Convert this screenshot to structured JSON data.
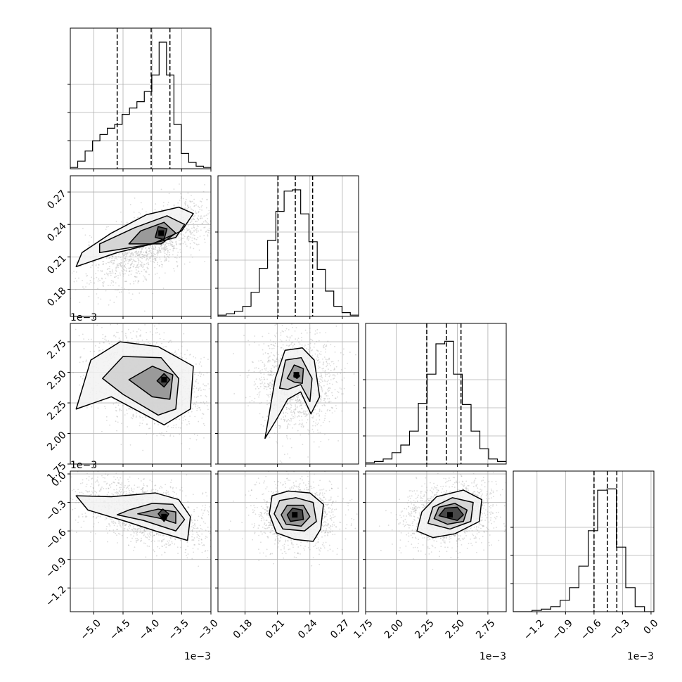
{
  "chart_data": {
    "type": "corner",
    "parameters": [
      {
        "range": [
          -5.4,
          -3.0
        ],
        "ticks": [
          -5.0,
          -4.5,
          -4.0,
          -3.5,
          -3.0
        ],
        "tick_labels": [
          "−5.0",
          "−4.5",
          "−4.0",
          "−3.5",
          "−3.0"
        ],
        "offset_label": "1e−3",
        "quantiles": [
          -4.6,
          -4.02,
          -3.7
        ]
      },
      {
        "range": [
          0.155,
          0.285
        ],
        "ticks": [
          0.18,
          0.21,
          0.24,
          0.27
        ],
        "tick_labels": [
          "0.18",
          "0.21",
          "0.24",
          "0.27"
        ],
        "offset_label": "",
        "quantiles": [
          0.2105,
          0.2265,
          0.2425
        ]
      },
      {
        "range": [
          1.75,
          2.9
        ],
        "ticks": [
          1.75,
          2.0,
          2.25,
          2.5,
          2.75
        ],
        "tick_labels": [
          "1.75",
          "2.00",
          "2.25",
          "2.50",
          "2.75"
        ],
        "offset_label": "1e−3",
        "quantiles": [
          2.25,
          2.41,
          2.53
        ]
      },
      {
        "range": [
          -1.45,
          0.03
        ],
        "ticks": [
          -1.2,
          -0.9,
          -0.6,
          -0.3,
          0.0
        ],
        "tick_labels": [
          "−1.2",
          "−0.9",
          "−0.6",
          "−0.3",
          "0.0"
        ],
        "offset_label": "1e−3",
        "quantiles": [
          -0.6,
          -0.46,
          -0.36
        ]
      }
    ],
    "histograms": [
      [
        0.01,
        0.06,
        0.14,
        0.22,
        0.27,
        0.32,
        0.35,
        0.43,
        0.48,
        0.53,
        0.61,
        0.74,
        1.0,
        0.74,
        0.35,
        0.12,
        0.05,
        0.02,
        0.01
      ],
      [
        0.01,
        0.02,
        0.04,
        0.08,
        0.19,
        0.38,
        0.6,
        0.83,
        0.99,
        1.0,
        0.81,
        0.59,
        0.37,
        0.2,
        0.08,
        0.03,
        0.01
      ],
      [
        0.01,
        0.02,
        0.04,
        0.09,
        0.15,
        0.26,
        0.48,
        0.71,
        0.95,
        0.97,
        0.71,
        0.47,
        0.26,
        0.12,
        0.04,
        0.02
      ],
      [
        0.0,
        0.0,
        0.01,
        0.02,
        0.04,
        0.09,
        0.19,
        0.36,
        0.64,
        0.96,
        0.97,
        0.51,
        0.19,
        0.04,
        0.0
      ]
    ],
    "histogram_y_ticks": [
      0.0,
      0.3,
      0.6,
      0.9
    ],
    "pairs": [
      {
        "x": 0,
        "y": 1,
        "mean": [
          -4.0,
          0.223
        ],
        "sigma": [
          0.5,
          0.018
        ],
        "corr": 0.7,
        "peak": [
          -3.85,
          0.232
        ],
        "contours": [
          [
            [
              -5.3,
              0.201
            ],
            [
              -4.6,
              0.214
            ],
            [
              -4.0,
              0.222
            ],
            [
              -3.5,
              0.234
            ],
            [
              -3.3,
              0.25
            ],
            [
              -3.55,
              0.256
            ],
            [
              -4.1,
              0.249
            ],
            [
              -4.7,
              0.232
            ],
            [
              -5.2,
              0.214
            ]
          ],
          [
            [
              -4.9,
              0.214
            ],
            [
              -4.1,
              0.221
            ],
            [
              -3.6,
              0.228
            ],
            [
              -3.45,
              0.24
            ],
            [
              -3.75,
              0.248
            ],
            [
              -4.3,
              0.237
            ],
            [
              -4.9,
              0.222
            ]
          ],
          [
            [
              -4.4,
              0.222
            ],
            [
              -3.85,
              0.222
            ],
            [
              -3.6,
              0.232
            ],
            [
              -3.8,
              0.242
            ],
            [
              -4.2,
              0.234
            ]
          ],
          [
            [
              -3.95,
              0.228
            ],
            [
              -3.8,
              0.226
            ],
            [
              -3.75,
              0.236
            ],
            [
              -3.9,
              0.238
            ]
          ]
        ]
      },
      {
        "x": 0,
        "y": 2,
        "mean": [
          -4.1,
          2.42
        ],
        "sigma": [
          0.45,
          0.17
        ],
        "corr": -0.3,
        "peak": [
          -3.8,
          2.44
        ],
        "contours": [
          [
            [
              -5.3,
              2.2
            ],
            [
              -5.05,
              2.6
            ],
            [
              -4.55,
              2.75
            ],
            [
              -3.9,
              2.71
            ],
            [
              -3.3,
              2.55
            ],
            [
              -3.35,
              2.2
            ],
            [
              -3.8,
              2.07
            ],
            [
              -4.7,
              2.3
            ]
          ],
          [
            [
              -4.85,
              2.45
            ],
            [
              -4.5,
              2.63
            ],
            [
              -3.85,
              2.62
            ],
            [
              -3.55,
              2.45
            ],
            [
              -3.6,
              2.2
            ],
            [
              -3.9,
              2.15
            ],
            [
              -4.5,
              2.32
            ]
          ],
          [
            [
              -4.4,
              2.44
            ],
            [
              -4.0,
              2.55
            ],
            [
              -3.65,
              2.48
            ],
            [
              -3.7,
              2.28
            ],
            [
              -4.0,
              2.3
            ]
          ],
          [
            [
              -3.92,
              2.43
            ],
            [
              -3.8,
              2.49
            ],
            [
              -3.7,
              2.44
            ],
            [
              -3.8,
              2.38
            ]
          ]
        ]
      },
      {
        "x": 1,
        "y": 2,
        "mean": [
          0.228,
          2.42
        ],
        "sigma": [
          0.016,
          0.17
        ],
        "corr": 0.0,
        "peak": [
          0.2275,
          2.48
        ],
        "contours": [
          [
            [
              0.1985,
              1.96
            ],
            [
              0.208,
              2.45
            ],
            [
              0.217,
              2.68
            ],
            [
              0.233,
              2.7
            ],
            [
              0.244,
              2.6
            ],
            [
              0.249,
              2.3
            ],
            [
              0.241,
              2.16
            ],
            [
              0.2315,
              2.34
            ],
            [
              0.2195,
              2.28
            ],
            [
              0.2095,
              2.12
            ]
          ],
          [
            [
              0.212,
              2.37
            ],
            [
              0.2175,
              2.6
            ],
            [
              0.232,
              2.62
            ],
            [
              0.242,
              2.45
            ],
            [
              0.24,
              2.26
            ],
            [
              0.2315,
              2.4
            ],
            [
              0.2195,
              2.36
            ]
          ],
          [
            [
              0.219,
              2.45
            ],
            [
              0.2255,
              2.56
            ],
            [
              0.234,
              2.53
            ],
            [
              0.233,
              2.41
            ],
            [
              0.2255,
              2.42
            ]
          ],
          [
            [
              0.225,
              2.47
            ],
            [
              0.2285,
              2.5
            ],
            [
              0.2305,
              2.47
            ],
            [
              0.228,
              2.45
            ]
          ]
        ]
      },
      {
        "x": 0,
        "y": 3,
        "mean": [
          -4.1,
          -0.42
        ],
        "sigma": [
          0.5,
          0.16
        ],
        "corr": -0.5,
        "peak": [
          -3.8,
          -0.45
        ],
        "contours": [
          [
            [
              -5.3,
              -0.23
            ],
            [
              -5.1,
              -0.38
            ],
            [
              -4.45,
              -0.5
            ],
            [
              -3.95,
              -0.6
            ],
            [
              -3.4,
              -0.7
            ],
            [
              -3.35,
              -0.45
            ],
            [
              -3.55,
              -0.27
            ],
            [
              -3.95,
              -0.2
            ],
            [
              -4.7,
              -0.24
            ]
          ],
          [
            [
              -4.6,
              -0.43
            ],
            [
              -4.15,
              -0.49
            ],
            [
              -3.6,
              -0.6
            ],
            [
              -3.45,
              -0.48
            ],
            [
              -3.65,
              -0.32
            ],
            [
              -4.0,
              -0.31
            ],
            [
              -4.4,
              -0.38
            ]
          ],
          [
            [
              -4.25,
              -0.42
            ],
            [
              -3.85,
              -0.47
            ],
            [
              -3.6,
              -0.52
            ],
            [
              -3.6,
              -0.4
            ],
            [
              -3.9,
              -0.37
            ]
          ],
          [
            [
              -3.9,
              -0.42
            ],
            [
              -3.8,
              -0.5
            ],
            [
              -3.72,
              -0.42
            ],
            [
              -3.82,
              -0.37
            ]
          ]
        ]
      },
      {
        "x": 1,
        "y": 3,
        "mean": [
          0.227,
          -0.43
        ],
        "sigma": [
          0.016,
          0.15
        ],
        "corr": 0.0,
        "peak": [
          0.226,
          -0.43
        ],
        "contours": [
          [
            [
              0.2025,
              -0.42
            ],
            [
              0.205,
              -0.23
            ],
            [
              0.22,
              -0.18
            ],
            [
              0.24,
              -0.2
            ],
            [
              0.2525,
              -0.32
            ],
            [
              0.25,
              -0.58
            ],
            [
              0.243,
              -0.71
            ],
            [
              0.226,
              -0.69
            ],
            [
              0.209,
              -0.62
            ]
          ],
          [
            [
              0.207,
              -0.42
            ],
            [
              0.212,
              -0.28
            ],
            [
              0.227,
              -0.25
            ],
            [
              0.243,
              -0.3
            ],
            [
              0.246,
              -0.5
            ],
            [
              0.235,
              -0.6
            ],
            [
              0.215,
              -0.58
            ]
          ],
          [
            [
              0.2135,
              -0.43
            ],
            [
              0.219,
              -0.33
            ],
            [
              0.234,
              -0.33
            ],
            [
              0.24,
              -0.45
            ],
            [
              0.232,
              -0.55
            ],
            [
              0.218,
              -0.53
            ]
          ],
          [
            [
              0.219,
              -0.43
            ],
            [
              0.224,
              -0.36
            ],
            [
              0.233,
              -0.38
            ],
            [
              0.234,
              -0.48
            ],
            [
              0.222,
              -0.5
            ]
          ]
        ]
      },
      {
        "x": 2,
        "y": 3,
        "mean": [
          2.43,
          -0.43
        ],
        "sigma": [
          0.16,
          0.15
        ],
        "corr": 0.2,
        "peak": [
          2.44,
          -0.43
        ],
        "contours": [
          [
            [
              2.17,
              -0.6
            ],
            [
              2.21,
              -0.4
            ],
            [
              2.33,
              -0.24
            ],
            [
              2.55,
              -0.17
            ],
            [
              2.7,
              -0.27
            ],
            [
              2.68,
              -0.5
            ],
            [
              2.48,
              -0.63
            ],
            [
              2.3,
              -0.67
            ]
          ],
          [
            [
              2.26,
              -0.52
            ],
            [
              2.3,
              -0.35
            ],
            [
              2.46,
              -0.25
            ],
            [
              2.63,
              -0.3
            ],
            [
              2.61,
              -0.5
            ],
            [
              2.44,
              -0.58
            ]
          ],
          [
            [
              2.31,
              -0.47
            ],
            [
              2.35,
              -0.35
            ],
            [
              2.48,
              -0.31
            ],
            [
              2.58,
              -0.38
            ],
            [
              2.55,
              -0.5
            ],
            [
              2.42,
              -0.53
            ]
          ],
          [
            [
              2.35,
              -0.44
            ],
            [
              2.4,
              -0.36
            ],
            [
              2.5,
              -0.35
            ],
            [
              2.55,
              -0.43
            ],
            [
              2.5,
              -0.49
            ]
          ]
        ]
      }
    ]
  }
}
